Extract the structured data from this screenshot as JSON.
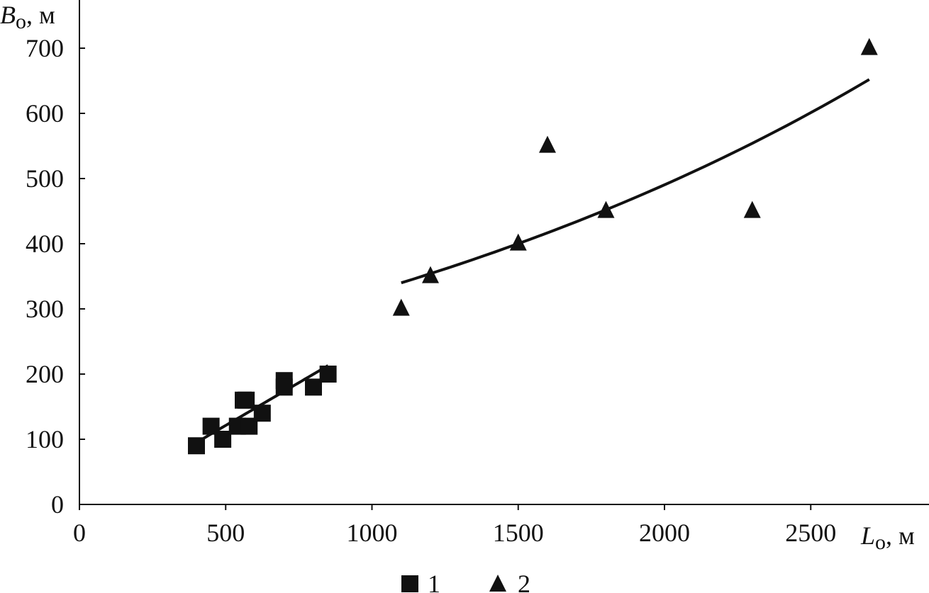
{
  "chart_data": {
    "type": "scatter",
    "xlabel": {
      "symbol": "L",
      "subscript": "o",
      "unit": ", м"
    },
    "ylabel": {
      "symbol": "B",
      "subscript": "o",
      "unit": ", м"
    },
    "xlim": [
      0,
      2900
    ],
    "ylim": [
      0,
      750
    ],
    "x_ticks": [
      0,
      500,
      1000,
      1500,
      2000,
      2500
    ],
    "y_ticks": [
      0,
      100,
      200,
      300,
      400,
      500,
      600,
      700
    ],
    "grid": false,
    "legend_position": "bottom",
    "series": [
      {
        "name": "1",
        "marker": "square",
        "color": "#111111",
        "points": [
          {
            "x": 400,
            "y": 90
          },
          {
            "x": 450,
            "y": 120
          },
          {
            "x": 490,
            "y": 100
          },
          {
            "x": 540,
            "y": 120
          },
          {
            "x": 560,
            "y": 160
          },
          {
            "x": 570,
            "y": 160
          },
          {
            "x": 580,
            "y": 120
          },
          {
            "x": 625,
            "y": 140
          },
          {
            "x": 700,
            "y": 190
          },
          {
            "x": 700,
            "y": 180
          },
          {
            "x": 800,
            "y": 180
          },
          {
            "x": 850,
            "y": 200
          }
        ],
        "trend": {
          "kind": "linear",
          "x_range": [
            400,
            850
          ],
          "y_range": [
            95,
            213
          ]
        }
      },
      {
        "name": "2",
        "marker": "triangle",
        "color": "#111111",
        "points": [
          {
            "x": 1100,
            "y": 300
          },
          {
            "x": 1200,
            "y": 350
          },
          {
            "x": 1500,
            "y": 400
          },
          {
            "x": 1600,
            "y": 550
          },
          {
            "x": 1800,
            "y": 450
          },
          {
            "x": 2300,
            "y": 450
          },
          {
            "x": 2700,
            "y": 700
          }
        ],
        "trend": {
          "kind": "exponential",
          "x_range": [
            1100,
            2700
          ],
          "y_range": [
            340,
            652
          ]
        }
      }
    ]
  }
}
